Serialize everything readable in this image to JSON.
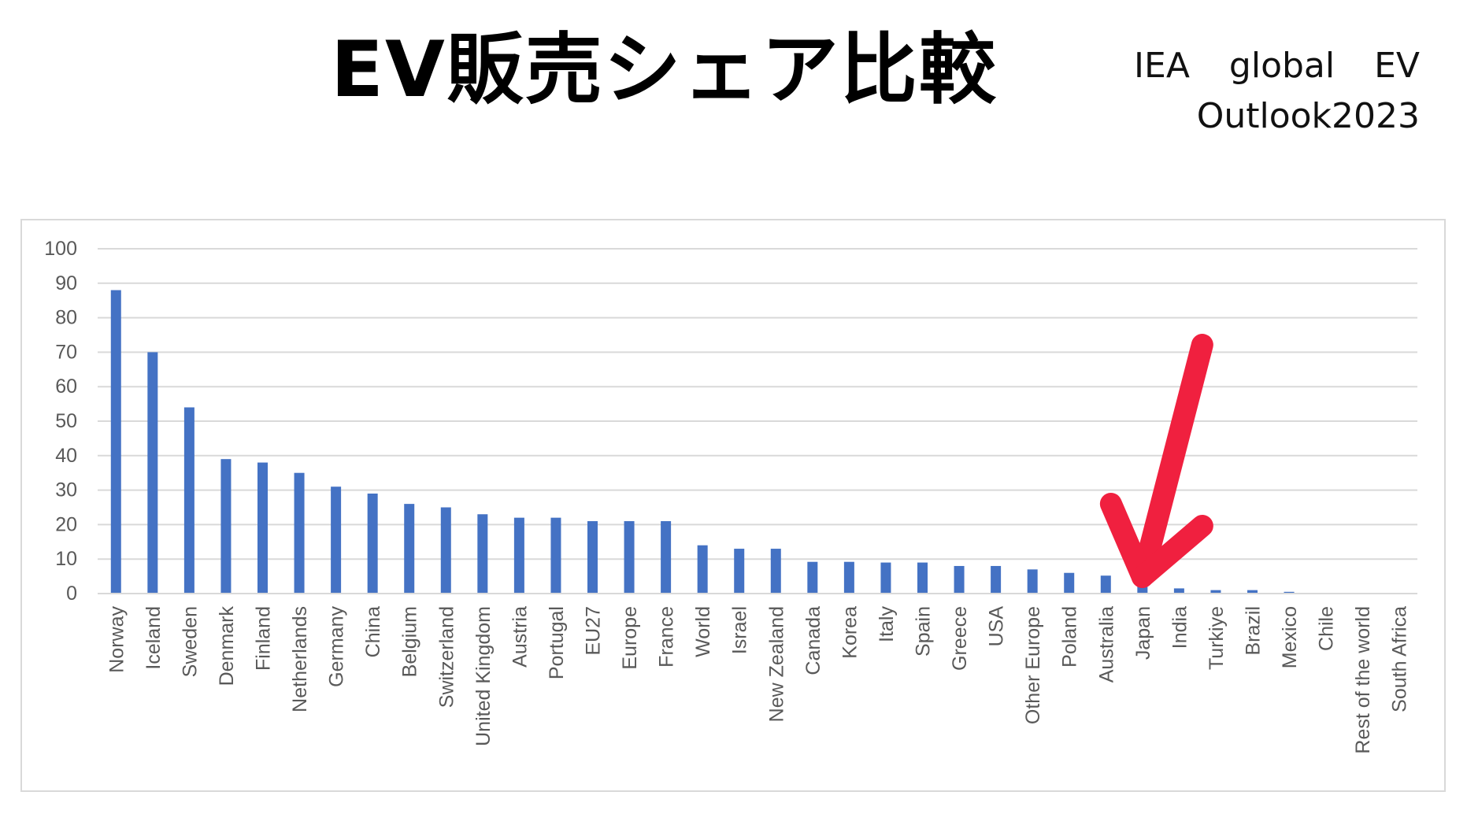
{
  "header": {
    "title": "EV販売シェア比較",
    "source": "IEA global EV Outlook2023"
  },
  "chart_data": {
    "type": "bar",
    "title": "EV販売シェア比較",
    "xlabel": "",
    "ylabel": "",
    "ylim": [
      0,
      100
    ],
    "yticks": [
      0,
      10,
      20,
      30,
      40,
      50,
      60,
      70,
      80,
      90,
      100
    ],
    "grid": true,
    "bar_color": "#4472c4",
    "categories": [
      "Norway",
      "Iceland",
      "Sweden",
      "Denmark",
      "Finland",
      "Netherlands",
      "Germany",
      "China",
      "Belgium",
      "Switzerland",
      "United Kingdom",
      "Austria",
      "Portugal",
      "EU27",
      "Europe",
      "France",
      "World",
      "Israel",
      "New Zealand",
      "Canada",
      "Korea",
      "Italy",
      "Spain",
      "Greece",
      "USA",
      "Other Europe",
      "Poland",
      "Australia",
      "Japan",
      "India",
      "Turkiye",
      "Brazil",
      "Mexico",
      "Chile",
      "Rest of the world",
      "South Africa"
    ],
    "values": [
      88,
      70,
      54,
      39,
      38,
      35,
      31,
      29,
      26,
      25,
      23,
      22,
      22,
      21,
      21,
      21,
      14,
      13,
      13,
      9.2,
      9.2,
      9,
      9,
      8,
      8,
      7,
      6,
      5.2,
      3,
      1.5,
      1,
      1,
      0.5,
      0,
      0,
      0
    ],
    "annotation": {
      "type": "arrow",
      "target": "Japan",
      "color": "#f0203f"
    }
  }
}
